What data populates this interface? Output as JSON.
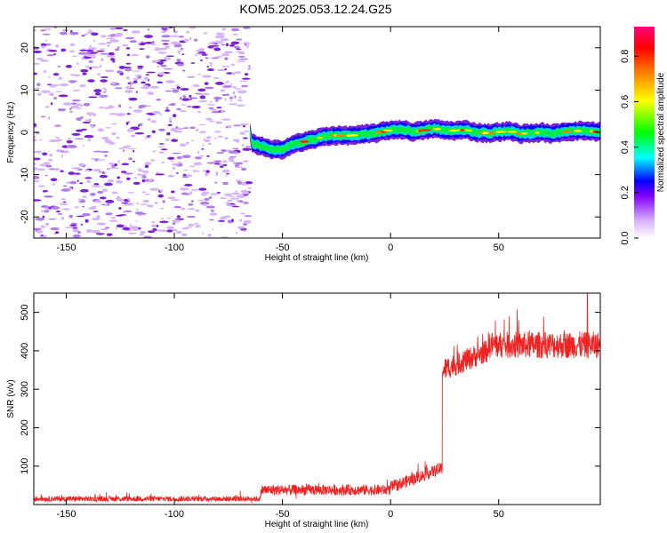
{
  "title": "KOM5.2025.053.12.24.G25",
  "colors": {
    "frame": "#000000",
    "snr_line": "#ee2222",
    "noise_light": "#d6b5f7",
    "noise_mid": "#b07ee8",
    "noise_dark": "#7a22d6"
  },
  "chart_data": [
    {
      "type": "heatmap",
      "title": "KOM5.2025.053.12.24.G25",
      "xlabel": "Height of straight line (km)",
      "ylabel": "Frequency (Hz)",
      "xlim": [
        -165,
        97
      ],
      "ylim": [
        -25,
        25
      ],
      "xticks": [
        -150,
        -100,
        -50,
        0,
        50
      ],
      "yticks": [
        -20,
        -10,
        0,
        10,
        20
      ],
      "colorbar": {
        "label": "Normalized spectral amplitude",
        "range": [
          0,
          0.93
        ],
        "ticks": [
          0.0,
          0.2,
          0.4,
          0.6,
          0.8
        ],
        "colormap": [
          "#ffffff",
          "#d9b3ff",
          "#8000ff",
          "#0000ff",
          "#00ffff",
          "#00ff00",
          "#ffff00",
          "#ff8000",
          "#ff0000",
          "#ff0080"
        ]
      },
      "noise_region_x": [
        -165,
        -65
      ],
      "signal_track": {
        "x": [
          -65,
          -60,
          -55,
          -50,
          -45,
          -40,
          -35,
          -30,
          -25,
          -20,
          -15,
          -10,
          -5,
          0,
          5,
          10,
          15,
          20,
          25,
          30,
          35,
          40,
          45,
          50,
          55,
          60,
          65,
          70,
          75,
          80,
          85,
          90,
          95
        ],
        "freq": [
          -2.5,
          -3.2,
          -4.2,
          -4.0,
          -2.8,
          -2.2,
          -1.6,
          -0.9,
          -0.7,
          -0.8,
          -0.6,
          -0.4,
          0.0,
          0.6,
          0.7,
          0.2,
          0.4,
          0.9,
          0.5,
          0.4,
          0.6,
          0.0,
          -0.2,
          0.1,
          0.3,
          -0.3,
          -0.2,
          0.0,
          -0.4,
          0.2,
          0.3,
          0.4,
          0.2
        ]
      }
    },
    {
      "type": "line",
      "xlabel": "Height of straight line (km)",
      "ylabel": "SNR (v/v)",
      "xlim": [
        -165,
        97
      ],
      "ylim": [
        0,
        550
      ],
      "xticks": [
        -150,
        -100,
        -50,
        0,
        50
      ],
      "yticks": [
        100,
        200,
        300,
        400,
        500
      ],
      "segments": [
        {
          "x_range": [
            -165,
            -60
          ],
          "mean": 15,
          "noise": 7
        },
        {
          "x_range": [
            -60,
            -40
          ],
          "mean": 38,
          "noise": 14
        },
        {
          "x_range": [
            -40,
            0
          ],
          "mean": 38,
          "noise": 14
        },
        {
          "x_range": [
            0,
            24
          ],
          "mean": 80,
          "noise": 16
        },
        {
          "x_range": [
            24,
            45
          ],
          "mean": 370,
          "noise": 30
        },
        {
          "x_range": [
            45,
            97
          ],
          "mean": 415,
          "noise": 35
        }
      ],
      "peak": {
        "x": 91,
        "y": 550
      }
    }
  ]
}
